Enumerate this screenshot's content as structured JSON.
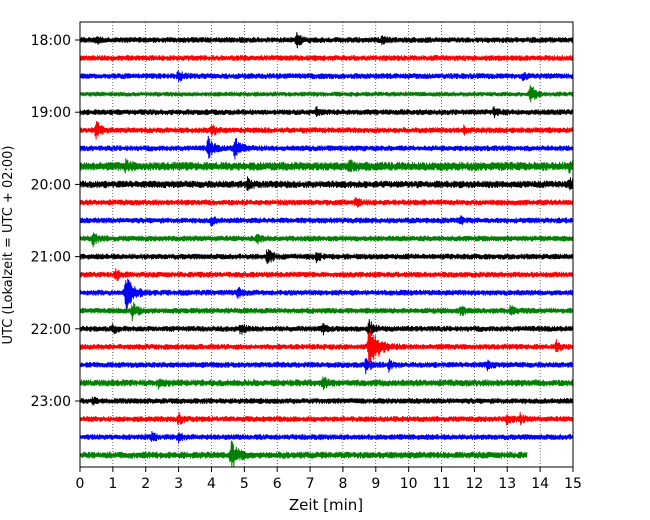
{
  "chart_data": {
    "type": "line",
    "title": "",
    "xlabel": "Zeit  [min]",
    "ylabel": "UTC (Lokalzeit = UTC + 02:00)",
    "xlim": [
      0,
      15
    ],
    "x_ticks": [
      "0",
      "1",
      "2",
      "3",
      "4",
      "5",
      "6",
      "7",
      "8",
      "9",
      "10",
      "11",
      "12",
      "13",
      "14",
      "15"
    ],
    "y_ticks": [
      "18:00",
      "19:00",
      "20:00",
      "21:00",
      "22:00",
      "23:00"
    ],
    "grid": "vertical dotted at each minute",
    "row_minutes": 15,
    "colors": [
      "#000000",
      "#ff0000",
      "#0000ff",
      "#008000"
    ],
    "series": [
      {
        "start": "18:00",
        "color": "#000000",
        "noise": 1.0,
        "events": [
          {
            "t": 0.5,
            "amp": 3
          },
          {
            "t": 6.6,
            "amp": 6
          },
          {
            "t": 9.2,
            "amp": 3
          }
        ]
      },
      {
        "start": "18:15",
        "color": "#ff0000",
        "noise": 1.0,
        "events": []
      },
      {
        "start": "18:30",
        "color": "#0000ff",
        "noise": 1.0,
        "events": [
          {
            "t": 3.0,
            "amp": 5
          },
          {
            "t": 13.5,
            "amp": 4
          }
        ]
      },
      {
        "start": "18:45",
        "color": "#008000",
        "noise": 0.8,
        "events": [
          {
            "t": 13.7,
            "amp": 10
          }
        ]
      },
      {
        "start": "19:00",
        "color": "#000000",
        "noise": 1.0,
        "events": [
          {
            "t": 7.2,
            "amp": 4
          },
          {
            "t": 12.6,
            "amp": 4
          }
        ]
      },
      {
        "start": "19:15",
        "color": "#ff0000",
        "noise": 1.0,
        "events": [
          {
            "t": 0.5,
            "amp": 9
          },
          {
            "t": 4.0,
            "amp": 6
          },
          {
            "t": 11.7,
            "amp": 4
          }
        ]
      },
      {
        "start": "19:30",
        "color": "#0000ff",
        "noise": 1.0,
        "events": [
          {
            "t": 3.9,
            "amp": 10
          },
          {
            "t": 4.7,
            "amp": 11
          }
        ]
      },
      {
        "start": "19:45",
        "color": "#008000",
        "noise": 1.6,
        "events": [
          {
            "t": 1.4,
            "amp": 4
          },
          {
            "t": 8.2,
            "amp": 5
          },
          {
            "t": 14.9,
            "amp": 5
          }
        ]
      },
      {
        "start": "20:00",
        "color": "#000000",
        "noise": 1.3,
        "events": [
          {
            "t": 5.1,
            "amp": 5
          },
          {
            "t": 14.9,
            "amp": 5
          }
        ]
      },
      {
        "start": "20:15",
        "color": "#ff0000",
        "noise": 1.0,
        "events": [
          {
            "t": 8.4,
            "amp": 4
          }
        ]
      },
      {
        "start": "20:30",
        "color": "#0000ff",
        "noise": 1.0,
        "events": [
          {
            "t": 4.0,
            "amp": 4
          },
          {
            "t": 11.6,
            "amp": 4
          }
        ]
      },
      {
        "start": "20:45",
        "color": "#008000",
        "noise": 1.0,
        "events": [
          {
            "t": 0.4,
            "amp": 6
          },
          {
            "t": 5.4,
            "amp": 4
          }
        ]
      },
      {
        "start": "21:00",
        "color": "#000000",
        "noise": 1.0,
        "events": [
          {
            "t": 5.7,
            "amp": 8
          },
          {
            "t": 7.2,
            "amp": 4
          }
        ]
      },
      {
        "start": "21:15",
        "color": "#ff0000",
        "noise": 1.0,
        "events": [
          {
            "t": 1.1,
            "amp": 6
          }
        ]
      },
      {
        "start": "21:30",
        "color": "#0000ff",
        "noise": 1.0,
        "events": [
          {
            "t": 1.4,
            "amp": 18
          },
          {
            "t": 4.8,
            "amp": 5
          }
        ]
      },
      {
        "start": "21:45",
        "color": "#008000",
        "noise": 1.0,
        "events": [
          {
            "t": 1.6,
            "amp": 8
          },
          {
            "t": 11.6,
            "amp": 4
          },
          {
            "t": 13.1,
            "amp": 4
          }
        ]
      },
      {
        "start": "22:00",
        "color": "#000000",
        "noise": 1.0,
        "events": [
          {
            "t": 1.0,
            "amp": 4
          },
          {
            "t": 4.9,
            "amp": 5
          },
          {
            "t": 7.4,
            "amp": 5
          },
          {
            "t": 8.8,
            "amp": 8
          }
        ]
      },
      {
        "start": "22:15",
        "color": "#ff0000",
        "noise": 1.0,
        "events": [
          {
            "t": 8.8,
            "amp": 25
          },
          {
            "t": 14.5,
            "amp": 5
          }
        ]
      },
      {
        "start": "22:30",
        "color": "#0000ff",
        "noise": 1.0,
        "events": [
          {
            "t": 8.7,
            "amp": 7
          },
          {
            "t": 9.4,
            "amp": 5
          },
          {
            "t": 12.4,
            "amp": 4
          }
        ]
      },
      {
        "start": "22:45",
        "color": "#008000",
        "noise": 1.2,
        "events": [
          {
            "t": 2.4,
            "amp": 4
          },
          {
            "t": 7.4,
            "amp": 5
          }
        ]
      },
      {
        "start": "23:00",
        "color": "#000000",
        "noise": 1.0,
        "events": [
          {
            "t": 0.4,
            "amp": 3
          }
        ]
      },
      {
        "start": "23:15",
        "color": "#ff0000",
        "noise": 1.0,
        "events": [
          {
            "t": 3.0,
            "amp": 5
          },
          {
            "t": 13.0,
            "amp": 5
          },
          {
            "t": 13.4,
            "amp": 4
          }
        ]
      },
      {
        "start": "23:30",
        "color": "#0000ff",
        "noise": 1.0,
        "events": [
          {
            "t": 2.2,
            "amp": 4
          },
          {
            "t": 3.0,
            "amp": 4
          }
        ]
      },
      {
        "start": "23:45",
        "color": "#008000",
        "noise": 1.2,
        "end": 13.6,
        "events": [
          {
            "t": 4.6,
            "amp": 14
          }
        ]
      }
    ]
  }
}
